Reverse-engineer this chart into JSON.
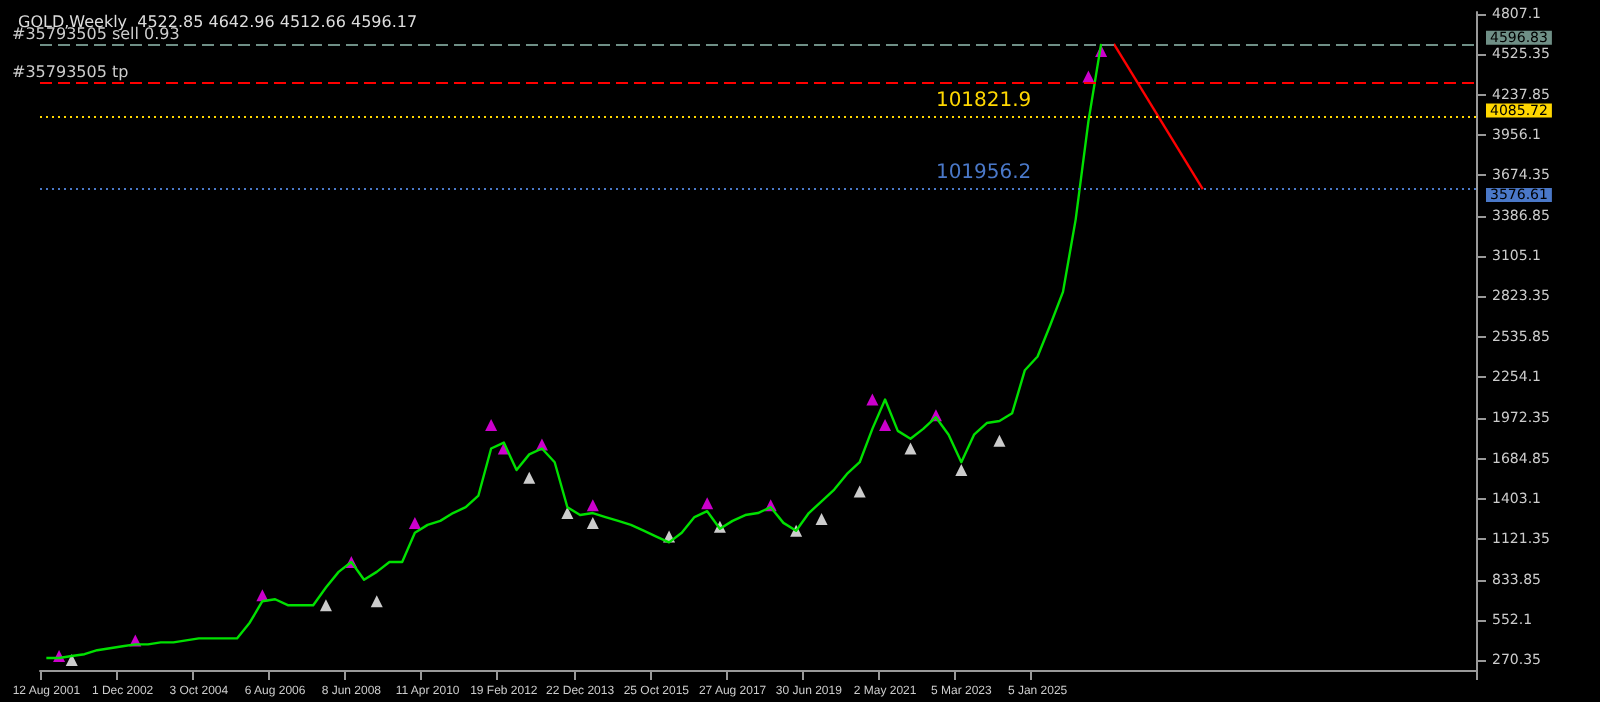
{
  "chart_data": {
    "type": "line",
    "title": "GOLD,Weekly  4522.85 4642.96 4512.66 4596.17",
    "categories": [
      "12 Aug 2001",
      null,
      null,
      null,
      null,
      null,
      "1 Dec 2002",
      null,
      null,
      null,
      null,
      null,
      "3 Oct 2004",
      null,
      null,
      null,
      null,
      null,
      "6 Aug 2006",
      null,
      null,
      null,
      null,
      null,
      "8 Jun 2008",
      null,
      null,
      null,
      null,
      null,
      "11 Apr 2010",
      null,
      null,
      null,
      null,
      null,
      "19 Feb 2012",
      null,
      null,
      null,
      null,
      null,
      "22 Dec 2013",
      null,
      null,
      null,
      null,
      null,
      "25 Oct 2015",
      null,
      null,
      null,
      null,
      null,
      "27 Aug 2017",
      null,
      null,
      null,
      null,
      null,
      "30 Jun 2019",
      null,
      null,
      null,
      null,
      null,
      "2 May 2021",
      null,
      null,
      null,
      null,
      null,
      "5 Mar 2023",
      null,
      null,
      null,
      null,
      null,
      "5 Jan 2025",
      null,
      null,
      null,
      null,
      null,
      null,
      null,
      null,
      null,
      null,
      null,
      null,
      null,
      null,
      null,
      null,
      null,
      null,
      null,
      null,
      null,
      null,
      null,
      null,
      null,
      null,
      null,
      null,
      null,
      null,
      null,
      null,
      null,
      null
    ],
    "series": [
      {
        "color": "#00e000",
        "marker": "none",
        "values": [
          284,
          284,
          298,
          311,
          339,
          353,
          367,
          380,
          380,
          394,
          394,
          408,
          422,
          422,
          422,
          422,
          532,
          683,
          697,
          655,
          655,
          655,
          779,
          889,
          958,
          834,
          889,
          958,
          958,
          1164,
          1219,
          1247,
          1302,
          1343,
          1425,
          1755,
          1797,
          1604,
          1714,
          1755,
          1659,
          1343,
          1288,
          1302,
          1274,
          1247,
          1219,
          1178,
          1137,
          1096,
          1164,
          1274,
          1315,
          1192,
          1247,
          1288,
          1302,
          1343,
          1233,
          1178,
          1302,
          1384,
          1467,
          1577,
          1659,
          1893,
          2099,
          1879,
          1824,
          1893,
          1975,
          1852,
          1659,
          1852,
          1934,
          1948,
          2003,
          2305,
          2401,
          2622,
          2855,
          3364,
          4052,
          4596,
          null,
          null,
          null,
          null,
          null,
          null,
          null,
          null,
          null,
          null,
          null,
          null,
          null,
          null,
          null,
          null,
          null,
          null,
          null,
          null,
          null,
          null,
          null,
          null,
          null,
          null,
          null,
          null,
          null
        ]
      },
      {
        "type": "scatter",
        "color": "#ff00ff",
        "marker": "triangle",
        "values": [
          null,
          298,
          null,
          null,
          null,
          null,
          null,
          408,
          null,
          null,
          null,
          null,
          null,
          null,
          null,
          null,
          null,
          724,
          null,
          null,
          null,
          null,
          null,
          null,
          958,
          null,
          null,
          null,
          null,
          1233,
          null,
          null,
          null,
          null,
          null,
          1920,
          1755,
          null,
          null,
          1783,
          null,
          null,
          null,
          1357,
          null,
          null,
          null,
          null,
          null,
          null,
          null,
          null,
          1370,
          null,
          null,
          null,
          null,
          1357,
          null,
          null,
          null,
          null,
          null,
          null,
          null,
          2099,
          1920,
          null,
          null,
          null,
          1989,
          null,
          null,
          null,
          null,
          null,
          null,
          null,
          null,
          null,
          null,
          null,
          4368,
          4546,
          null,
          null,
          null,
          null,
          null,
          null,
          null,
          null,
          null,
          null,
          null,
          null,
          null,
          null,
          null,
          null,
          null,
          null,
          null,
          null,
          null,
          null,
          null,
          null,
          null,
          null,
          null,
          null,
          null
        ]
      },
      {
        "type": "scatter",
        "color": "#ffffff",
        "marker": "triangle",
        "values": [
          null,
          null,
          270,
          null,
          null,
          null,
          null,
          null,
          null,
          null,
          null,
          null,
          null,
          null,
          null,
          null,
          null,
          null,
          null,
          null,
          null,
          null,
          655,
          null,
          null,
          null,
          683,
          null,
          null,
          null,
          null,
          null,
          null,
          null,
          null,
          null,
          null,
          null,
          1549,
          null,
          null,
          1302,
          null,
          1233,
          null,
          null,
          null,
          null,
          null,
          1137,
          null,
          null,
          null,
          1205,
          null,
          null,
          null,
          null,
          null,
          1178,
          null,
          1260,
          null,
          null,
          1453,
          null,
          null,
          null,
          1755,
          null,
          null,
          null,
          1604,
          null,
          null,
          1810,
          null,
          null,
          null,
          null,
          null,
          null,
          null,
          null,
          null,
          null,
          null,
          null,
          null,
          null,
          null,
          null,
          null,
          null,
          null,
          null,
          null,
          null,
          null,
          null,
          null,
          null,
          null,
          null,
          null,
          null,
          null,
          null,
          null,
          null,
          null,
          null,
          null
        ]
      },
      {
        "color": "#ff0000",
        "marker": "none",
        "values": [
          null,
          null,
          null,
          null,
          null,
          null,
          null,
          null,
          null,
          null,
          null,
          null,
          null,
          null,
          null,
          null,
          null,
          null,
          null,
          null,
          null,
          null,
          null,
          null,
          null,
          null,
          null,
          null,
          null,
          null,
          null,
          null,
          null,
          null,
          null,
          null,
          null,
          null,
          null,
          null,
          null,
          null,
          null,
          null,
          null,
          null,
          null,
          null,
          null,
          null,
          null,
          null,
          null,
          null,
          null,
          null,
          null,
          null,
          null,
          null,
          null,
          null,
          null,
          null,
          null,
          null,
          null,
          null,
          null,
          null,
          null,
          null,
          null,
          null,
          null,
          null,
          null,
          null,
          null,
          null,
          null,
          null,
          null,
          null,
          4596,
          null,
          null,
          null,
          null,
          null,
          null,
          3576,
          null,
          null,
          null,
          null,
          null,
          null,
          null,
          null,
          null,
          null,
          null,
          null,
          null,
          null,
          null,
          null,
          null,
          null,
          null,
          null,
          null
        ]
      }
    ],
    "ylim": [
      200,
      4820
    ],
    "yticks": [
      270.35,
      552.1,
      833.85,
      1121.35,
      1403.1,
      1684.85,
      1972.35,
      2254.1,
      2535.85,
      2823.35,
      3105.1,
      3386.85,
      3674.35,
      3956.1,
      4237.85,
      4525.35,
      4807.1
    ],
    "ref_lines": [
      {
        "axis": "y",
        "value": 4596.83,
        "label": "4596.83",
        "color": "#6f8f86",
        "line_style": "dashed"
      },
      {
        "axis": "y",
        "value": 4326,
        "color": "#ff0000",
        "line_style": "dashed"
      },
      {
        "axis": "y",
        "value": 4085.72,
        "label": "4085.72",
        "color": "#ffd700",
        "line_style": "dotted"
      },
      {
        "axis": "y",
        "value": 3576.61,
        "label": "3576.61",
        "color": "#4a78c8",
        "line_style": "dotted"
      }
    ],
    "annotations": [
      {
        "text": "#35793505 sell 0.93",
        "y": 4596.83
      },
      {
        "text": "#35793505 tp",
        "y": 4326
      },
      {
        "text": "101821.9",
        "y": 4085.72
      },
      {
        "text": "101956.2",
        "y": 3576.61
      }
    ],
    "grid": false
  }
}
